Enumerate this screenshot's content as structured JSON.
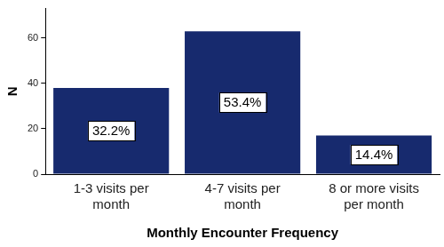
{
  "chart_data": {
    "type": "bar",
    "x_label": "Monthly Encounter Frequency",
    "y_label": "N",
    "categories": [
      "1-3 visits per month",
      "4-7 visits per month",
      "8 or more visits per month"
    ],
    "values": [
      38,
      63,
      17
    ],
    "annotations": [
      "32.2%",
      "53.4%",
      "14.4%"
    ],
    "color": "#172a6e",
    "ylim": [
      0,
      73
    ],
    "yticks": [
      0,
      20,
      40,
      60
    ],
    "grid": false
  }
}
